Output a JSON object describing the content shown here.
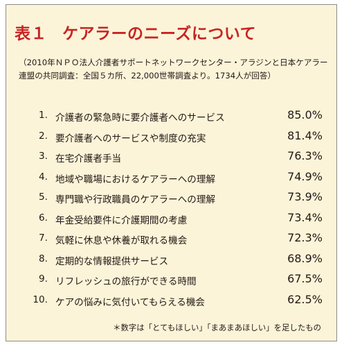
{
  "table": {
    "title_num": "表１",
    "title_text": "ケアラーのニーズについて",
    "source": "（2010年ＮＰＯ法人介護者サポートネットワークセンター・アラジンと日本ケアラー連盟の共同調査：全国５カ所、22,000世帯調査より。1734人が回答）",
    "items": [
      {
        "rank": "1.",
        "label": "介護者の緊急時に要介護者へのサービス",
        "value": "85.0%"
      },
      {
        "rank": "2.",
        "label": "要介護者へのサービスや制度の充実",
        "value": "81.4%"
      },
      {
        "rank": "3.",
        "label": "在宅介護者手当",
        "value": "76.3%"
      },
      {
        "rank": "4.",
        "label": "地域や職場におけるケアラーへの理解",
        "value": "74.9%"
      },
      {
        "rank": "5.",
        "label": "専門職や行政職員のケアラーへの理解",
        "value": "73.9%"
      },
      {
        "rank": "6.",
        "label": "年金受給要件に介護期間の考慮",
        "value": "73.4%"
      },
      {
        "rank": "7.",
        "label": "気軽に休息や休養が取れる機会",
        "value": "72.3%"
      },
      {
        "rank": "8.",
        "label": "定期的な情報提供サービス",
        "value": "68.9%"
      },
      {
        "rank": "9.",
        "label": "リフレッシュの旅行ができる時間",
        "value": "67.5%"
      },
      {
        "rank": "10.",
        "label": "ケアの悩みに気付いてもらえる機会",
        "value": "62.5%"
      }
    ],
    "footnote": "＊数字は「とてもほしい」「まあまあほしい」を足したもの"
  },
  "colors": {
    "panel_bg": "#fbf4d8",
    "title_red": "#c82423",
    "text": "#231815"
  }
}
